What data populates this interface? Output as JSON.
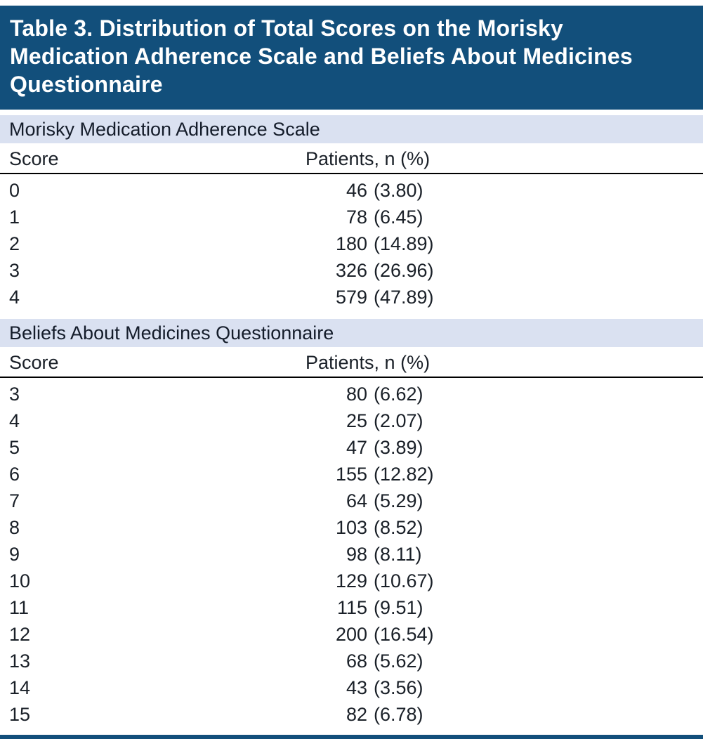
{
  "title": "Table 3. Distribution of Total Scores on the Morisky Medication Adherence Scale and Beliefs About Medicines Questionnaire",
  "colors": {
    "title_band_bg": "#124f7b",
    "title_text": "#ffffff",
    "section_band_bg": "#dae1f1",
    "body_text": "#1a2028",
    "header_rule": "#000000",
    "bottom_rule": "#124f7b"
  },
  "sections": [
    {
      "header": "Morisky Medication Adherence Scale",
      "columns": {
        "score": "Score",
        "patients": "Patients, n (%)"
      },
      "rows": [
        {
          "score": "0",
          "n": "46",
          "pct": "(3.80)"
        },
        {
          "score": "1",
          "n": "78",
          "pct": "(6.45)"
        },
        {
          "score": "2",
          "n": "180",
          "pct": "(14.89)"
        },
        {
          "score": "3",
          "n": "326",
          "pct": "(26.96)"
        },
        {
          "score": "4",
          "n": "579",
          "pct": "(47.89)"
        }
      ]
    },
    {
      "header": "Beliefs About Medicines Questionnaire",
      "columns": {
        "score": "Score",
        "patients": "Patients, n (%)"
      },
      "rows": [
        {
          "score": "3",
          "n": "80",
          "pct": "(6.62)"
        },
        {
          "score": "4",
          "n": "25",
          "pct": "(2.07)"
        },
        {
          "score": "5",
          "n": "47",
          "pct": "(3.89)"
        },
        {
          "score": "6",
          "n": "155",
          "pct": "(12.82)"
        },
        {
          "score": "7",
          "n": "64",
          "pct": "(5.29)"
        },
        {
          "score": "8",
          "n": "103",
          "pct": "(8.52)"
        },
        {
          "score": "9",
          "n": "98",
          "pct": "(8.11)"
        },
        {
          "score": "10",
          "n": "129",
          "pct": "(10.67)"
        },
        {
          "score": "11",
          "n": "115",
          "pct": "(9.51)"
        },
        {
          "score": "12",
          "n": "200",
          "pct": "(16.54)"
        },
        {
          "score": "13",
          "n": "68",
          "pct": "(5.62)"
        },
        {
          "score": "14",
          "n": "43",
          "pct": "(3.56)"
        },
        {
          "score": "15",
          "n": "82",
          "pct": "(6.78)"
        }
      ]
    }
  ]
}
